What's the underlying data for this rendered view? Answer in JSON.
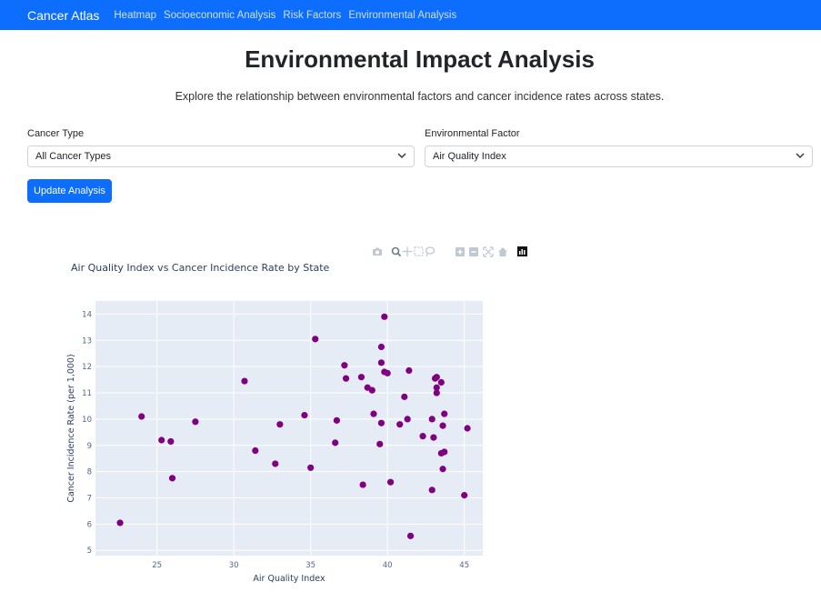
{
  "navbar": {
    "brand": "Cancer Atlas",
    "links": [
      "Heatmap",
      "Socioeconomic Analysis",
      "Risk Factors",
      "Environmental Analysis"
    ]
  },
  "page": {
    "title": "Environmental Impact Analysis",
    "subtitle": "Explore the relationship between environmental factors and cancer incidence rates across states."
  },
  "controls": {
    "cancer_type_label": "Cancer Type",
    "cancer_type_value": "All Cancer Types",
    "env_factor_label": "Environmental Factor",
    "env_factor_value": "Air Quality Index",
    "update_button": "Update Analysis"
  },
  "colors": {
    "primary": "#0d6efd",
    "marker": "#800080",
    "plot_bg": "#e5ecf6"
  },
  "modebar_icons": [
    "camera-icon",
    "zoom-icon",
    "pan-icon",
    "box-select-icon",
    "lasso-icon",
    "zoom-in-icon",
    "zoom-out-icon",
    "autoscale-icon",
    "reset-axes-icon",
    "plotly-logo-icon"
  ],
  "chart_data": {
    "type": "scatter",
    "title": "Air Quality Index vs Cancer Incidence Rate by State",
    "xlabel": "Air Quality Index",
    "ylabel": "Cancer Incidence Rate (per 1,000)",
    "xlim": [
      21,
      46.2
    ],
    "ylim": [
      4.8,
      14.5
    ],
    "x_ticks": [
      25,
      30,
      35,
      40,
      45
    ],
    "y_ticks": [
      5,
      6,
      7,
      8,
      9,
      10,
      11,
      12,
      13,
      14
    ],
    "grid": true,
    "points": [
      [
        22.6,
        6.05
      ],
      [
        24.0,
        10.1
      ],
      [
        25.3,
        9.2
      ],
      [
        25.9,
        9.15
      ],
      [
        26.0,
        7.75
      ],
      [
        27.5,
        9.9
      ],
      [
        30.7,
        11.45
      ],
      [
        31.4,
        8.8
      ],
      [
        32.7,
        8.3
      ],
      [
        33.0,
        9.8
      ],
      [
        34.6,
        10.15
      ],
      [
        35.0,
        8.15
      ],
      [
        35.3,
        13.05
      ],
      [
        36.6,
        9.1
      ],
      [
        36.7,
        9.95
      ],
      [
        37.2,
        12.05
      ],
      [
        37.3,
        11.55
      ],
      [
        38.3,
        11.6
      ],
      [
        38.4,
        7.5
      ],
      [
        38.7,
        11.2
      ],
      [
        39.0,
        11.1
      ],
      [
        39.1,
        10.2
      ],
      [
        39.5,
        9.05
      ],
      [
        39.6,
        9.85
      ],
      [
        39.6,
        12.15
      ],
      [
        39.6,
        12.75
      ],
      [
        39.8,
        13.9
      ],
      [
        39.8,
        11.8
      ],
      [
        40.0,
        11.75
      ],
      [
        40.2,
        7.6
      ],
      [
        40.8,
        9.8
      ],
      [
        41.1,
        10.85
      ],
      [
        41.3,
        10.0
      ],
      [
        41.4,
        11.85
      ],
      [
        41.5,
        5.55
      ],
      [
        42.3,
        9.35
      ],
      [
        42.9,
        10.0
      ],
      [
        42.9,
        7.3
      ],
      [
        43.0,
        9.3
      ],
      [
        43.1,
        11.55
      ],
      [
        43.2,
        11.6
      ],
      [
        43.2,
        11.2
      ],
      [
        43.2,
        11.0
      ],
      [
        43.5,
        8.7
      ],
      [
        43.5,
        11.4
      ],
      [
        43.6,
        9.75
      ],
      [
        43.6,
        8.1
      ],
      [
        43.7,
        10.2
      ],
      [
        43.7,
        8.75
      ],
      [
        45.0,
        7.1
      ],
      [
        45.2,
        9.65
      ]
    ]
  }
}
